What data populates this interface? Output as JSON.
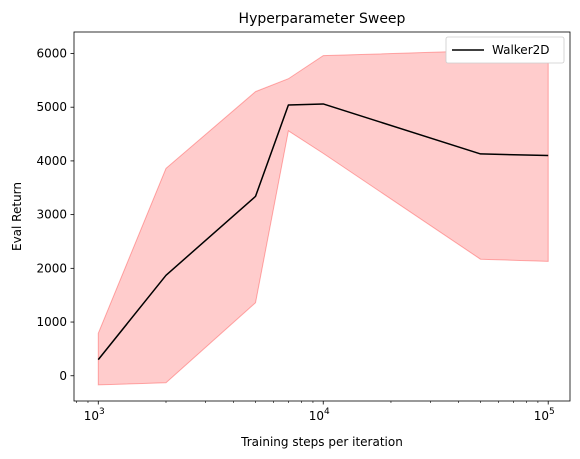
{
  "chart_data": {
    "type": "line",
    "title": "Hyperparameter Sweep",
    "xlabel": "Training steps per iteration",
    "ylabel": "Eval Return",
    "xscale": "log",
    "xlim": [
      780,
      125000
    ],
    "ylim": [
      -470,
      6400
    ],
    "x_ticks": [
      {
        "value": 1000,
        "base": "10",
        "exp": "3"
      },
      {
        "value": 10000,
        "base": "10",
        "exp": "4"
      },
      {
        "value": 100000,
        "base": "10",
        "exp": "5"
      }
    ],
    "y_ticks": [
      {
        "value": 0,
        "label": "0"
      },
      {
        "value": 1000,
        "label": "1000"
      },
      {
        "value": 2000,
        "label": "2000"
      },
      {
        "value": 3000,
        "label": "3000"
      },
      {
        "value": 4000,
        "label": "4000"
      },
      {
        "value": 5000,
        "label": "5000"
      },
      {
        "value": 6000,
        "label": "6000"
      }
    ],
    "grid": false,
    "legend_position": "top-right",
    "series": [
      {
        "name": "Walker2D",
        "color": "#000000",
        "band_color": "#ff0000",
        "band_opacity": 0.2,
        "x": [
          1000,
          2000,
          5000,
          7000,
          10000,
          50000,
          100000
        ],
        "y": [
          300,
          1870,
          3340,
          5040,
          5060,
          4130,
          4100
        ],
        "lower": [
          -170,
          -130,
          1360,
          4560,
          4140,
          2170,
          2130
        ],
        "upper": [
          790,
          3860,
          5290,
          5530,
          5960,
          6050,
          6060
        ]
      }
    ]
  }
}
